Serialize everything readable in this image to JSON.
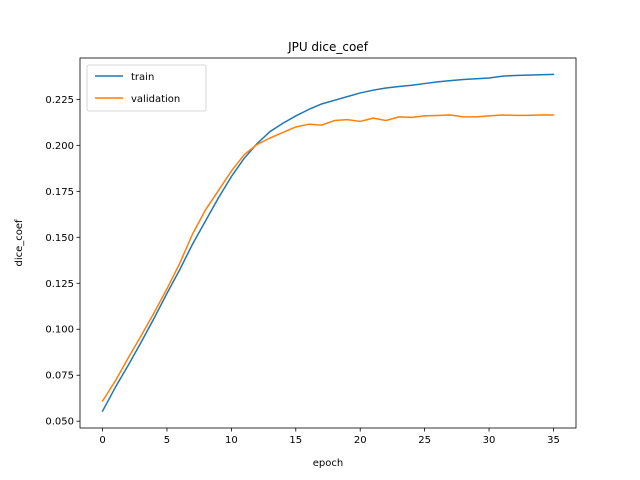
{
  "chart_data": {
    "type": "line",
    "title": "JPU dice_coef",
    "xlabel": "epoch",
    "ylabel": "dice_coef",
    "xlim": [
      -1.75,
      36.75
    ],
    "ylim": [
      0.0463,
      0.2475
    ],
    "xticks": [
      0,
      5,
      10,
      15,
      20,
      25,
      30,
      35
    ],
    "yticks": [
      0.05,
      0.075,
      0.1,
      0.125,
      0.15,
      0.175,
      0.2,
      0.225
    ],
    "ytick_labels": [
      "0.050",
      "0.075",
      "0.100",
      "0.125",
      "0.150",
      "0.175",
      "0.200",
      "0.225"
    ],
    "grid": false,
    "legend": "top-left",
    "x": [
      0,
      1,
      2,
      3,
      4,
      5,
      6,
      7,
      8,
      9,
      10,
      11,
      12,
      13,
      14,
      15,
      16,
      17,
      18,
      19,
      20,
      21,
      22,
      23,
      24,
      25,
      26,
      27,
      28,
      29,
      30,
      31,
      32,
      33,
      34,
      35
    ],
    "series": [
      {
        "name": "train",
        "color": "#1f77b4",
        "values": [
          0.0555,
          0.0685,
          0.0805,
          0.093,
          0.106,
          0.1195,
          0.1325,
          0.1465,
          0.159,
          0.1715,
          0.183,
          0.193,
          0.201,
          0.2075,
          0.212,
          0.216,
          0.2195,
          0.2225,
          0.2245,
          0.2265,
          0.2285,
          0.23,
          0.2312,
          0.232,
          0.2327,
          0.2336,
          0.2345,
          0.2352,
          0.2358,
          0.2362,
          0.2366,
          0.2376,
          0.238,
          0.2382,
          0.2384,
          0.2386
        ]
      },
      {
        "name": "validation",
        "color": "#ff7f0e",
        "values": [
          0.061,
          0.072,
          0.0845,
          0.0965,
          0.109,
          0.122,
          0.136,
          0.152,
          0.165,
          0.1755,
          0.186,
          0.195,
          0.2005,
          0.204,
          0.207,
          0.21,
          0.2115,
          0.211,
          0.2135,
          0.214,
          0.213,
          0.2148,
          0.2135,
          0.2155,
          0.2152,
          0.216,
          0.2162,
          0.2165,
          0.2155,
          0.2155,
          0.216,
          0.2165,
          0.2163,
          0.2163,
          0.2165,
          0.2165
        ]
      }
    ]
  }
}
